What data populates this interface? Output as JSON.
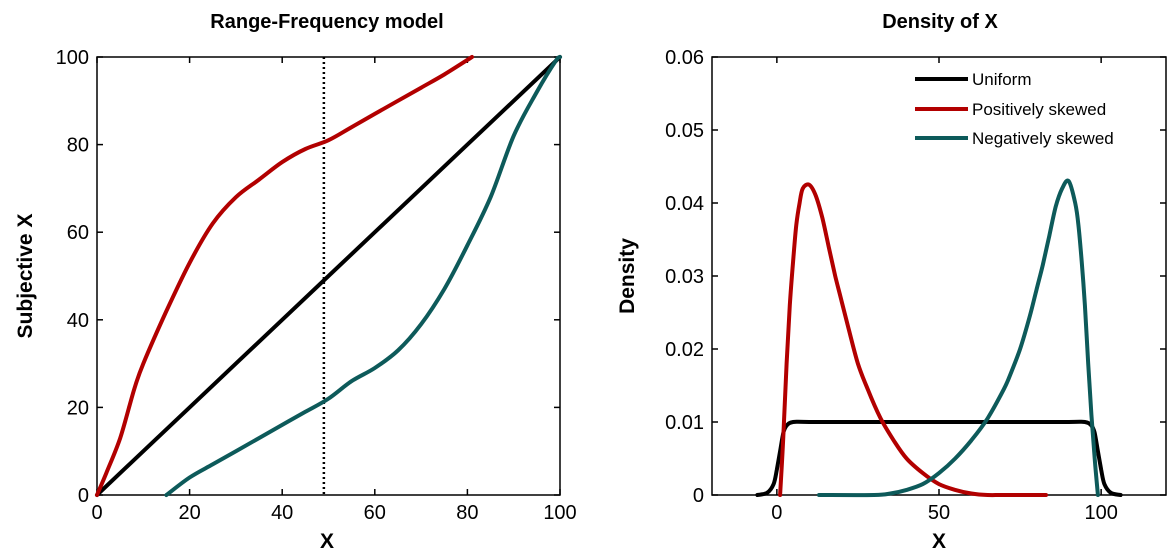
{
  "colors": {
    "uniform": "#000000",
    "positive": "#b20000",
    "negative": "#0d5a5a",
    "reference": "#000000"
  },
  "chart_data": [
    {
      "type": "line",
      "title": "Range-Frequency model",
      "xlabel": "X",
      "ylabel": "Subjective X",
      "xlim": [
        0,
        100
      ],
      "ylim": [
        0,
        100
      ],
      "xticks": [
        0,
        20,
        40,
        60,
        80,
        100
      ],
      "yticks": [
        0,
        20,
        40,
        60,
        80,
        100
      ],
      "reference_line": {
        "x": 49,
        "style": "dotted"
      },
      "series": [
        {
          "key": "uniform",
          "x": [
            0,
            20,
            40,
            60,
            80,
            100
          ],
          "y": [
            0,
            20,
            40,
            60,
            80,
            100
          ]
        },
        {
          "key": "positive",
          "x": [
            0,
            2,
            5,
            8,
            10,
            15,
            20,
            25,
            30,
            35,
            40,
            45,
            50,
            55,
            60,
            65,
            70,
            75,
            81
          ],
          "y": [
            0,
            5,
            13,
            24,
            30,
            42,
            53,
            62,
            68,
            72,
            76,
            79,
            81,
            84,
            87,
            90,
            93,
            96,
            100
          ]
        },
        {
          "key": "negative",
          "x": [
            15,
            20,
            25,
            30,
            35,
            40,
            45,
            50,
            55,
            60,
            65,
            70,
            75,
            80,
            85,
            90,
            95,
            99,
            100
          ],
          "y": [
            0,
            4,
            7,
            10,
            13,
            16,
            19,
            22,
            26,
            29,
            33,
            39,
            47,
            57,
            68,
            82,
            92,
            99,
            100
          ]
        }
      ]
    },
    {
      "type": "line",
      "title": "Density of X",
      "xlabel": "X",
      "ylabel": "Density",
      "xlim": [
        -20,
        120
      ],
      "ylim": [
        0,
        0.06
      ],
      "xticks": [
        0,
        50,
        100
      ],
      "ytick_values": [
        0,
        0.01,
        0.02,
        0.03,
        0.04,
        0.05,
        0.06
      ],
      "ytick_labels": [
        "0",
        "0.01",
        "0.02",
        "0.03",
        "0.04",
        "0.05",
        "0.06"
      ],
      "legend_position": "top-right",
      "series": [
        {
          "key": "uniform",
          "name": "Uniform",
          "x": [
            -6,
            -3,
            -1,
            0,
            1,
            2,
            3,
            5,
            10,
            30,
            50,
            70,
            90,
            95,
            97,
            98,
            99,
            100,
            101,
            103,
            106
          ],
          "y": [
            0,
            0.0003,
            0.0015,
            0.0035,
            0.006,
            0.0085,
            0.0095,
            0.01,
            0.01,
            0.01,
            0.01,
            0.01,
            0.01,
            0.01,
            0.0095,
            0.0085,
            0.006,
            0.0035,
            0.0015,
            0.0003,
            0
          ]
        },
        {
          "key": "positive",
          "name": "Positively skewed",
          "x": [
            1,
            2,
            3,
            4,
            5,
            6,
            7,
            8,
            10,
            12,
            14,
            16,
            18,
            20,
            22,
            25,
            28,
            32,
            36,
            40,
            45,
            50,
            55,
            60,
            65,
            70,
            83
          ],
          "y": [
            0,
            0.008,
            0.018,
            0.026,
            0.032,
            0.037,
            0.04,
            0.042,
            0.0425,
            0.041,
            0.038,
            0.034,
            0.03,
            0.0265,
            0.023,
            0.018,
            0.0145,
            0.0105,
            0.0075,
            0.005,
            0.003,
            0.0015,
            0.0007,
            0.0002,
            0,
            0,
            0
          ]
        },
        {
          "key": "negative",
          "name": "Negatively skewed",
          "x": [
            13,
            30,
            35,
            40,
            45,
            50,
            55,
            60,
            65,
            70,
            72,
            75,
            78,
            80,
            82,
            84,
            86,
            88,
            90,
            92,
            93,
            94,
            95,
            96,
            97,
            98,
            99
          ],
          "y": [
            0,
            0,
            0.0002,
            0.0007,
            0.0015,
            0.003,
            0.005,
            0.0075,
            0.0105,
            0.0145,
            0.0165,
            0.02,
            0.0245,
            0.028,
            0.0315,
            0.0355,
            0.0395,
            0.042,
            0.043,
            0.04,
            0.037,
            0.032,
            0.026,
            0.018,
            0.011,
            0.005,
            0
          ]
        }
      ]
    }
  ]
}
